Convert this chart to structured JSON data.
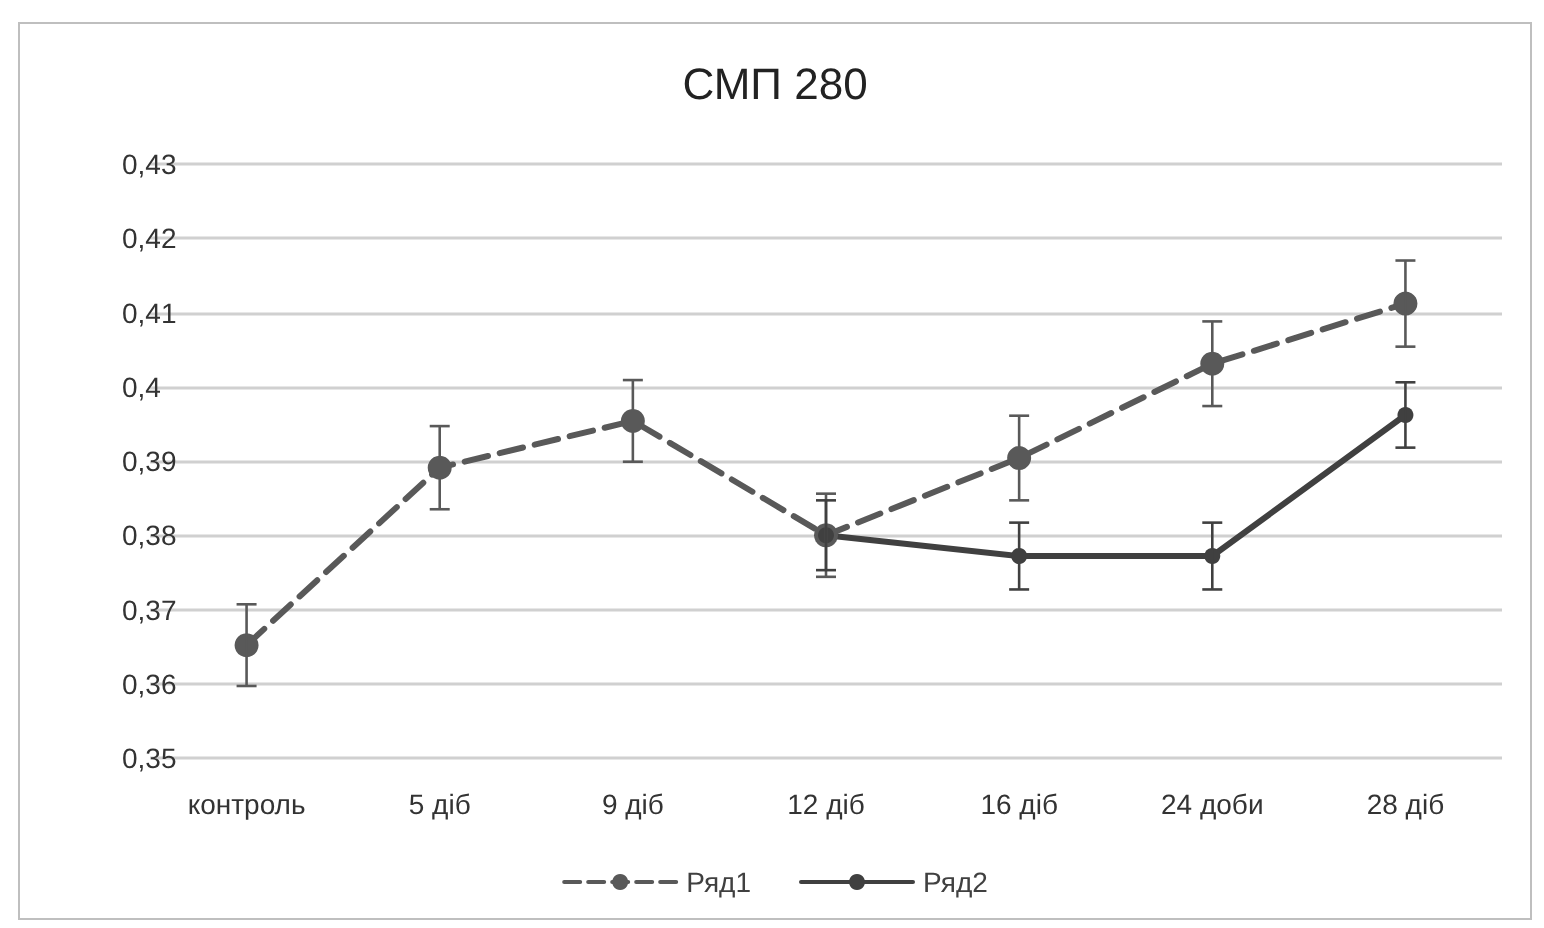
{
  "chart_data": {
    "type": "line",
    "title": "СМП 280",
    "categories": [
      "контроль",
      "5 діб",
      "9 діб",
      "12 діб",
      "16 діб",
      "24 доби",
      "28 діб"
    ],
    "series": [
      {
        "name": "Ряд1",
        "color": "#595959",
        "line_style": "dashed",
        "values": [
          0.3652,
          0.3891,
          0.3954,
          0.38,
          0.3904,
          0.4031,
          0.4112
        ],
        "errors": [
          0.0055,
          0.0056,
          0.0055,
          0.0056,
          0.0057,
          0.0057,
          0.0058
        ]
      },
      {
        "name": "Ряд2",
        "color": "#404040",
        "line_style": "solid",
        "values": [
          null,
          null,
          null,
          0.38,
          0.3772,
          0.3772,
          0.3962
        ],
        "errors": [
          null,
          null,
          null,
          0.0047,
          0.0045,
          0.0045,
          0.0044
        ]
      }
    ],
    "ylim": [
      0.35,
      0.43
    ],
    "yticks": [
      {
        "value": 0.35,
        "label": "0,35"
      },
      {
        "value": 0.36,
        "label": "0,36"
      },
      {
        "value": 0.37,
        "label": "0,37"
      },
      {
        "value": 0.38,
        "label": "0,38"
      },
      {
        "value": 0.39,
        "label": "0,39"
      },
      {
        "value": 0.4,
        "label": "0,4"
      },
      {
        "value": 0.41,
        "label": "0,41"
      },
      {
        "value": 0.42,
        "label": "0,42"
      },
      {
        "value": 0.43,
        "label": "0,43"
      }
    ],
    "grid": "y",
    "legend": "bottom",
    "marker": "circle"
  }
}
